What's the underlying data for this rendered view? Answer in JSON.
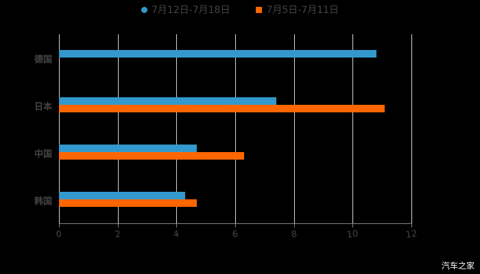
{
  "chart_data": {
    "type": "bar",
    "orientation": "horizontal",
    "title": "",
    "categories": [
      "德国",
      "日本",
      "中国",
      "韩国"
    ],
    "series": [
      {
        "name": "7月12日-7月18日",
        "color": "#3399cc",
        "values": [
          10.8,
          7.4,
          4.7,
          4.3
        ]
      },
      {
        "name": "7月5日-7月11日",
        "color": "#ff6600",
        "values": [
          null,
          11.1,
          6.3,
          4.7
        ]
      }
    ],
    "xlabel": "",
    "ylabel": "",
    "xlim": [
      0,
      12
    ],
    "xticks": [
      "0",
      "2",
      "4",
      "6",
      "8",
      "10",
      "12"
    ],
    "grid": true,
    "legend_position": "top"
  },
  "legend": {
    "s1": "7月12日-7月18日",
    "s2": "7月5日-7月11日"
  },
  "watermark": "汽车之家"
}
